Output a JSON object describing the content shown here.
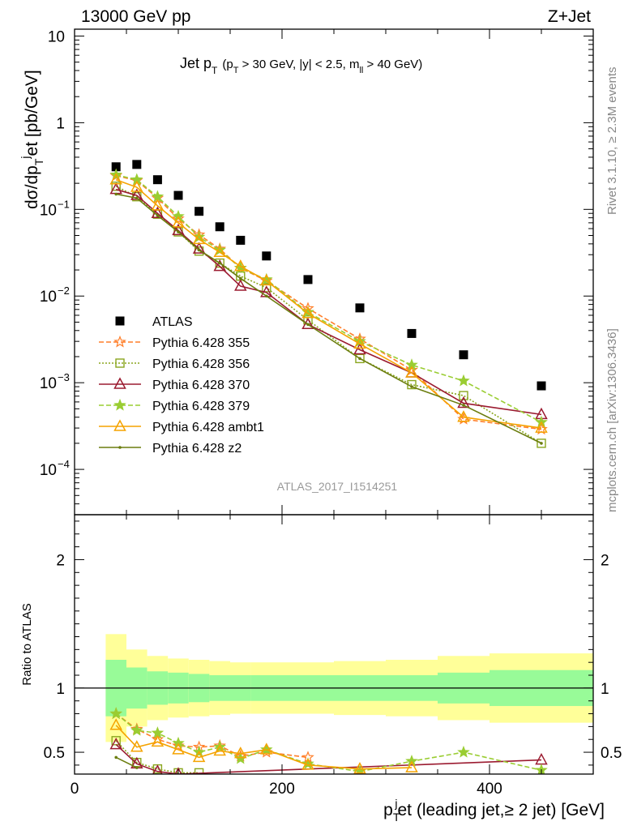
{
  "header": {
    "energy_label": "13000 GeV pp",
    "process_label": "Z+Jet"
  },
  "side_labels": {
    "rivet": "Rivet 3.1.10, ≥ 2.3M events",
    "mcplots": "mcplots.cern.ch [arXiv:1306.3436]"
  },
  "chart_data": [
    {
      "type": "scatter",
      "panel": "main",
      "title": "Jet p_T (p_T > 30 GeV, |y| < 2.5, m_ll > 40 GeV)",
      "title_main": "Jet p",
      "title_sub_T": "T",
      "title_cond_a": "(p",
      "title_cond_b": " > 30 GeV, |y| < 2.5, m",
      "title_cond_sub": "ll",
      "title_cond_c": " > 40 GeV)",
      "ylabel": "dσ/dp_T^jet [pb/GeV]",
      "analysis_label": "ATLAS_2017_I1514251",
      "yscale": "log",
      "ylim": [
        3e-05,
        12
      ],
      "xlim": [
        0,
        500
      ],
      "yticks": [
        {
          "value": 10,
          "label": "10"
        },
        {
          "value": 1,
          "label": "1"
        },
        {
          "value": 0.1,
          "label": "10",
          "exp": "−1"
        },
        {
          "value": 0.01,
          "label": "10",
          "exp": "−2"
        },
        {
          "value": 0.001,
          "label": "10",
          "exp": "−3"
        },
        {
          "value": 0.0001,
          "label": "10",
          "exp": "−4"
        }
      ],
      "legend_position": "left",
      "series": [
        {
          "name": "ATLAS",
          "color": "#000000",
          "marker": "square-filled",
          "line": "none",
          "x": [
            40,
            60,
            80,
            100,
            120,
            140,
            160,
            185,
            225,
            275,
            325,
            375,
            450
          ],
          "y": [
            0.31,
            0.33,
            0.22,
            0.145,
            0.095,
            0.063,
            0.044,
            0.029,
            0.0155,
            0.0073,
            0.0037,
            0.0021,
            0.00092
          ]
        },
        {
          "name": "Pythia 6.428 355",
          "color": "#ff7f2a",
          "marker": "star-open",
          "line": "dashed",
          "x": [
            40,
            60,
            80,
            100,
            120,
            140,
            160,
            185,
            225,
            275,
            325,
            375,
            450
          ],
          "y": [
            0.245,
            0.215,
            0.135,
            0.078,
            0.051,
            0.035,
            0.021,
            0.015,
            0.0072,
            0.0032,
            0.0014,
            0.00038,
            0.00029
          ]
        },
        {
          "name": "Pythia 6.428 356",
          "color": "#8aa61e",
          "marker": "square-open",
          "line": "dotted",
          "x": [
            40,
            60,
            80,
            100,
            120,
            140,
            160,
            185,
            225,
            275,
            325,
            375,
            450
          ],
          "y": [
            0.185,
            0.14,
            0.088,
            0.055,
            0.033,
            0.024,
            0.017,
            0.0125,
            0.0053,
            0.0019,
            0.00095,
            0.00071,
            0.0002
          ]
        },
        {
          "name": "Pythia 6.428 370",
          "color": "#9b1b30",
          "marker": "triangle-open",
          "line": "solid",
          "x": [
            40,
            60,
            80,
            100,
            120,
            140,
            160,
            185,
            225,
            275,
            325,
            375,
            450
          ],
          "y": [
            0.17,
            0.145,
            0.09,
            0.057,
            0.035,
            0.022,
            0.013,
            0.011,
            0.0047,
            0.0024,
            0.0013,
            0.00058,
            0.00043
          ]
        },
        {
          "name": "Pythia 6.428 379",
          "color": "#9acd32",
          "marker": "star-filled",
          "line": "dashed",
          "x": [
            40,
            60,
            80,
            100,
            120,
            140,
            160,
            185,
            225,
            275,
            325,
            375,
            450
          ],
          "y": [
            0.25,
            0.22,
            0.14,
            0.083,
            0.048,
            0.034,
            0.021,
            0.0155,
            0.0065,
            0.003,
            0.0016,
            0.00105,
            0.00035
          ]
        },
        {
          "name": "Pythia 6.428 ambt1",
          "color": "#f5a300",
          "marker": "triangle-open",
          "line": "solid",
          "x": [
            40,
            60,
            80,
            100,
            120,
            140,
            160,
            185,
            225,
            275,
            325,
            375,
            450
          ],
          "y": [
            0.22,
            0.18,
            0.11,
            0.07,
            0.045,
            0.032,
            0.022,
            0.015,
            0.0063,
            0.0028,
            0.0013,
            0.0004,
            0.0003
          ]
        },
        {
          "name": "Pythia 6.428 z2",
          "color": "#6b7d0e",
          "marker": "dot",
          "line": "solid",
          "x": [
            40,
            60,
            80,
            100,
            120,
            140,
            160,
            185,
            225,
            275,
            325,
            375,
            450
          ],
          "y": [
            0.15,
            0.135,
            0.085,
            0.055,
            0.034,
            0.024,
            0.016,
            0.01,
            0.0047,
            0.0019,
            0.0009,
            0.00055,
            0.0002
          ]
        }
      ]
    },
    {
      "type": "scatter",
      "panel": "ratio",
      "ylabel": "Ratio to ATLAS",
      "xlabel_main": "p",
      "xlabel_sub": "T",
      "xlabel_sup": "j",
      "xlabel_rest": "et (leading jet,≥ 2 jet) [GeV]",
      "xlabel_full": "p_T^jet (leading jet,≥ 2 jet) [GeV]",
      "xlim": [
        0,
        500
      ],
      "ylim": [
        0.33,
        2.35
      ],
      "xticks": [
        {
          "value": 0,
          "label": "0"
        },
        {
          "value": 200,
          "label": "200"
        },
        {
          "value": 400,
          "label": "400"
        }
      ],
      "yticks": [
        {
          "value": 0.5,
          "label": "0.5"
        },
        {
          "value": 1,
          "label": "1"
        },
        {
          "value": 2,
          "label": "2"
        }
      ],
      "bands": {
        "edges": [
          30,
          50,
          70,
          90,
          110,
          130,
          150,
          170,
          200,
          250,
          300,
          350,
          400,
          500
        ],
        "inner": [
          0.22,
          0.16,
          0.13,
          0.12,
          0.11,
          0.1,
          0.1,
          0.1,
          0.1,
          0.1,
          0.1,
          0.12,
          0.14
        ],
        "outer": [
          0.42,
          0.3,
          0.25,
          0.23,
          0.22,
          0.21,
          0.2,
          0.2,
          0.2,
          0.21,
          0.22,
          0.25,
          0.27
        ],
        "inner_color": "#98fb98",
        "outer_color": "#ffff99"
      },
      "series": [
        {
          "name": "Pythia 6.428 355",
          "x": [
            40,
            60,
            80,
            100,
            120,
            140,
            160,
            185,
            225
          ],
          "y": [
            0.8,
            0.68,
            0.6,
            0.55,
            0.54,
            0.55,
            0.47,
            0.5,
            0.46
          ]
        },
        {
          "name": "Pythia 6.428 356",
          "x": [
            40,
            60,
            80,
            100,
            120
          ],
          "y": [
            0.59,
            0.42,
            0.37,
            0.34,
            0.34
          ]
        },
        {
          "name": "Pythia 6.428 370",
          "x": [
            40,
            60,
            80,
            100,
            450
          ],
          "y": [
            0.56,
            0.41,
            0.35,
            0.33,
            0.44
          ]
        },
        {
          "name": "Pythia 6.428 379",
          "x": [
            40,
            60,
            80,
            100,
            120,
            140,
            160,
            185,
            225,
            275,
            325,
            375,
            450
          ],
          "y": [
            0.8,
            0.67,
            0.65,
            0.57,
            0.5,
            0.54,
            0.45,
            0.52,
            0.41,
            0.35,
            0.43,
            0.5,
            0.36
          ]
        },
        {
          "name": "Pythia 6.428 ambt1",
          "x": [
            40,
            60,
            80,
            100,
            120,
            140,
            160,
            185,
            225,
            275,
            325
          ],
          "y": [
            0.71,
            0.54,
            0.58,
            0.52,
            0.46,
            0.51,
            0.49,
            0.52,
            0.4,
            0.37,
            0.38
          ]
        },
        {
          "name": "Pythia 6.428 z2",
          "x": [
            40,
            60
          ],
          "y": [
            0.46,
            0.38
          ]
        }
      ]
    }
  ]
}
